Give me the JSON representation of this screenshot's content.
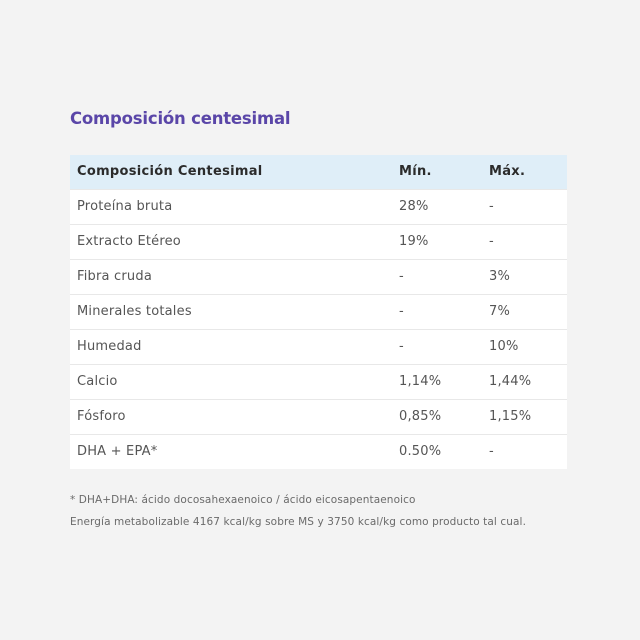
{
  "section": {
    "title": "Composición centesimal"
  },
  "table": {
    "headers": [
      "Composición Centesimal",
      "Mín.",
      "Máx."
    ],
    "rows": [
      [
        "Proteína bruta",
        "28%",
        "-"
      ],
      [
        "Extracto Etéreo",
        "19%",
        "-"
      ],
      [
        "Fibra cruda",
        "-",
        "3%"
      ],
      [
        "Minerales totales",
        "-",
        "7%"
      ],
      [
        "Humedad",
        "-",
        "10%"
      ],
      [
        "Calcio",
        "1,14%",
        "1,44%"
      ],
      [
        "Fósforo",
        "0,85%",
        "1,15%"
      ],
      [
        "DHA + EPA*",
        "0.50%",
        "-"
      ]
    ]
  },
  "notes": {
    "footnote": "* DHA+DHA: ácido docosahexaenoico / ácido eicosapentaenoico",
    "energy": "Energía metabolizable 4167 kcal/kg sobre MS y 3750 kcal/kg como producto tal cual."
  },
  "colors": {
    "heading": "#5a46a8",
    "header_bg": "#dfeef8",
    "page_bg": "#f3f3f3"
  }
}
